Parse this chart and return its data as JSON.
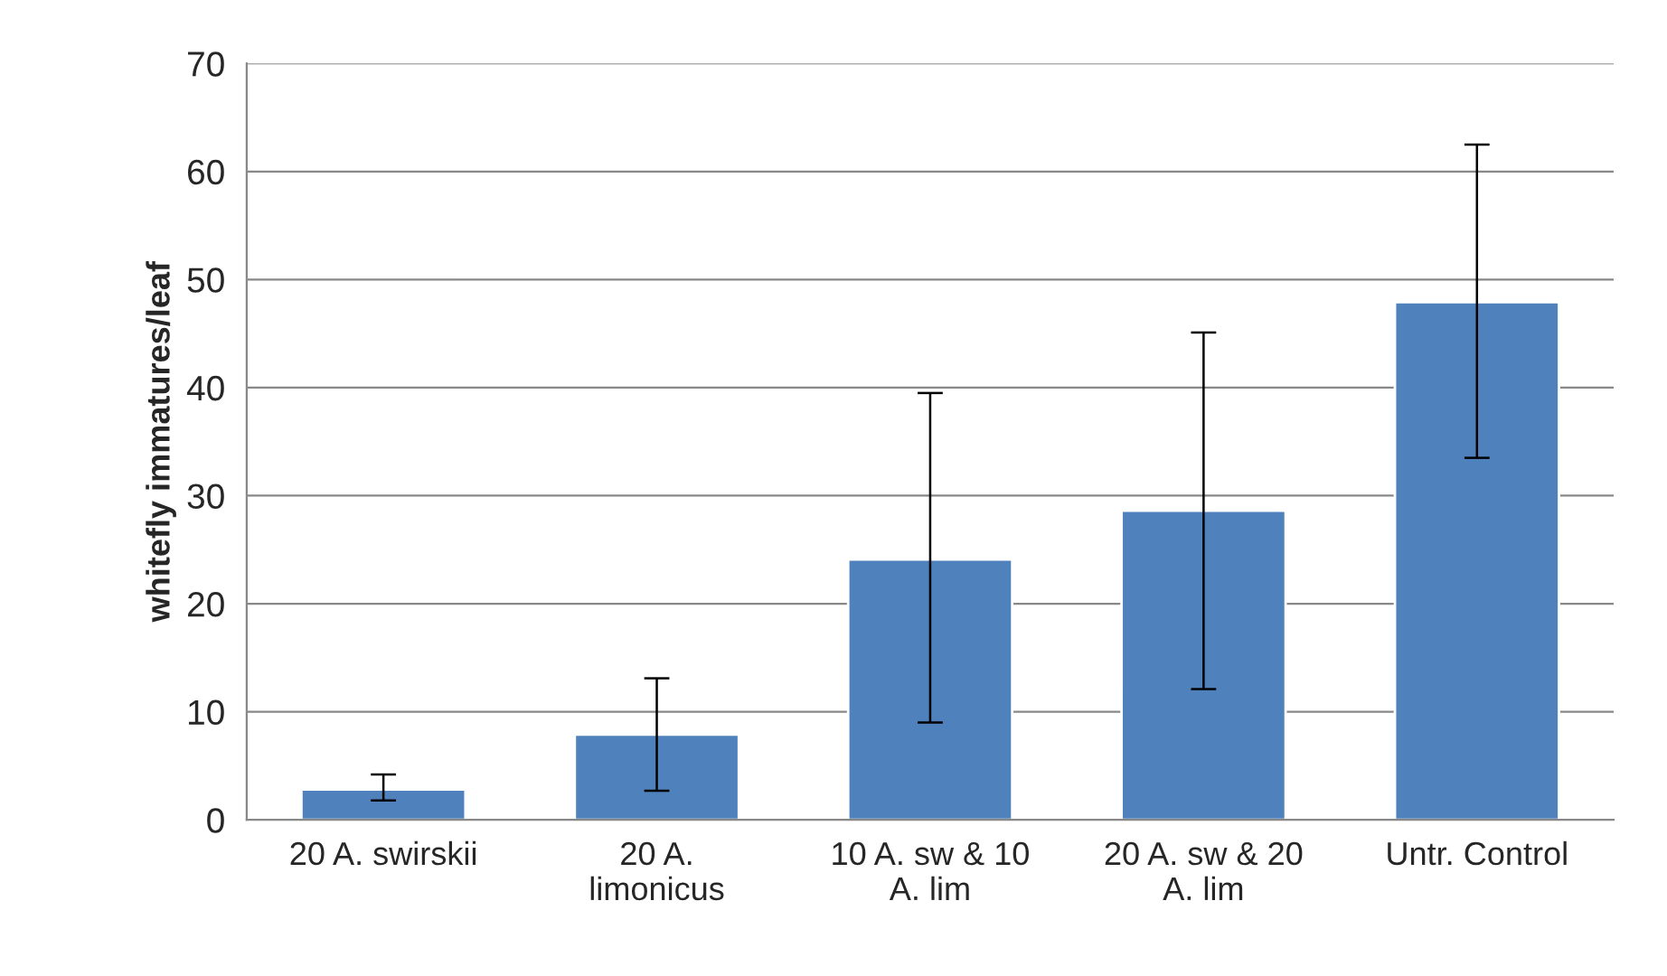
{
  "chart_data": {
    "type": "bar",
    "categories": [
      "20 A. swirskii",
      "20 A. limonicus",
      "10 A. sw & 10 A. lim",
      "20 A. sw & 20 A. lim",
      "Untr. Control"
    ],
    "values": [
      2.8,
      7.9,
      24.1,
      28.6,
      47.9
    ],
    "errors": [
      [
        1.8,
        4.2
      ],
      [
        2.7,
        13.1
      ],
      [
        9.0,
        39.5
      ],
      [
        12.1,
        45.1
      ],
      [
        33.5,
        62.5
      ]
    ],
    "color": "#4f81bd",
    "ylabel": "whitefly immatures/leaf",
    "ylim": [
      0,
      70
    ],
    "yticks": [
      0,
      10,
      20,
      30,
      40,
      50,
      60,
      70
    ],
    "grid": "y",
    "legend": false
  }
}
